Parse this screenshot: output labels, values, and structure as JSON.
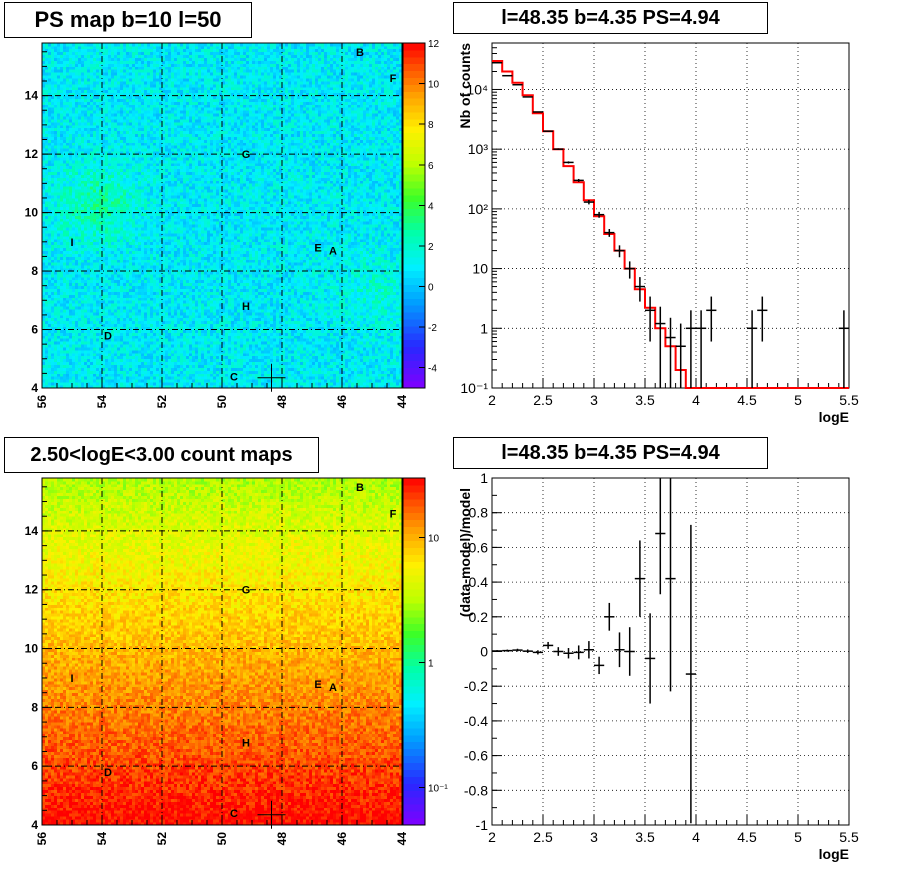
{
  "titles": {
    "ps_map": "PS map b=10 l=50",
    "spectrum": "l=48.35 b=4.35 PS=4.94",
    "count_map": "2.50<logE<3.00 count maps",
    "residual": "l=48.35 b=4.35 PS=4.94"
  },
  "colors": {
    "model_line": "#ff0000",
    "data_points": "#000000",
    "grid": "#000000"
  },
  "chart_data": [
    {
      "type": "heatmap",
      "id": "ps_map",
      "title": "PS map b=10 l=50",
      "x_range": [
        56,
        44
      ],
      "y_range": [
        4,
        15.8
      ],
      "x_ticks": [
        56,
        54,
        52,
        50,
        48,
        46,
        44
      ],
      "y_ticks": [
        4,
        6,
        8,
        10,
        12,
        14
      ],
      "colorbar_range": [
        -5,
        12
      ],
      "colorbar_ticks": [
        -4,
        -2,
        0,
        2,
        4,
        6,
        8,
        10,
        12
      ],
      "typical_value": 1,
      "sources": [
        {
          "label": "B",
          "l": 45.4,
          "b": 15.5
        },
        {
          "label": "F",
          "l": 44.3,
          "b": 14.6
        },
        {
          "label": "G",
          "l": 49.2,
          "b": 12.0
        },
        {
          "label": "I",
          "l": 55.0,
          "b": 9.0
        },
        {
          "label": "E",
          "l": 46.8,
          "b": 8.8
        },
        {
          "label": "A",
          "l": 46.3,
          "b": 8.7
        },
        {
          "label": "H",
          "l": 49.2,
          "b": 6.8
        },
        {
          "label": "D",
          "l": 53.8,
          "b": 5.8
        },
        {
          "label": "C",
          "l": 49.6,
          "b": 4.4
        }
      ],
      "marker": {
        "l": 48.35,
        "b": 4.35
      }
    },
    {
      "type": "line",
      "id": "spectrum",
      "title": "l=48.35 b=4.35 PS=4.94",
      "xlabel": "logE",
      "ylabel": "Nb of counts",
      "xlim": [
        2,
        5.5
      ],
      "ylim": [
        0.1,
        60000
      ],
      "y_scale": "log",
      "grid": true,
      "x_ticks": [
        2,
        2.5,
        3,
        3.5,
        4,
        4.5,
        5,
        5.5
      ],
      "y_ticks": [
        {
          "value": 0.1,
          "label": "10⁻¹"
        },
        {
          "value": 1,
          "label": "1"
        },
        {
          "value": 10,
          "label": "10"
        },
        {
          "value": 100,
          "label": "10²"
        },
        {
          "value": 1000,
          "label": "10³"
        },
        {
          "value": 10000,
          "label": "10⁴"
        }
      ],
      "bin_edges": [
        2.0,
        2.1,
        2.2,
        2.3,
        2.4,
        2.5,
        2.6,
        2.7,
        2.8,
        2.9,
        3.0,
        3.1,
        3.2,
        3.3,
        3.4,
        3.5,
        3.6,
        3.7,
        3.8,
        3.9,
        4.0,
        4.1,
        4.2,
        4.3,
        4.4,
        4.5,
        4.6,
        4.7,
        4.8,
        4.9,
        5.0,
        5.1,
        5.2,
        5.3,
        5.4,
        5.5
      ],
      "series": [
        {
          "kind": "model_histogram",
          "values": [
            30000,
            20000,
            13000,
            8000,
            4000,
            2000,
            1000,
            520,
            280,
            140,
            75,
            38,
            20,
            10,
            4.5,
            2.2,
            1.0,
            0.5,
            0.2,
            0.1,
            0.1,
            0.1,
            0.1,
            0.1,
            0.1,
            0.1,
            0.1,
            0.1,
            0.1,
            0.1,
            0.1,
            0.1,
            0.1,
            0.1,
            0.1
          ]
        },
        {
          "kind": "data_points",
          "x": [
            2.05,
            2.15,
            2.25,
            2.35,
            2.45,
            2.55,
            2.65,
            2.75,
            2.85,
            2.95,
            3.05,
            3.15,
            3.25,
            3.35,
            3.45,
            3.55,
            3.65,
            3.75,
            3.85,
            3.95,
            4.05,
            4.15,
            4.55,
            4.65,
            5.45
          ],
          "y": [
            28000,
            17000,
            12000,
            7500,
            4200,
            2000,
            1000,
            600,
            300,
            130,
            80,
            40,
            20,
            10,
            5,
            2,
            1.2,
            0.7,
            0.5,
            1,
            1,
            2,
            1,
            2,
            1
          ],
          "err": [
            170,
            130,
            110,
            90,
            65,
            45,
            32,
            25,
            17,
            11,
            9,
            6,
            4.5,
            3.2,
            2.2,
            1.4,
            1.1,
            0.8,
            0.7,
            1,
            1,
            1.4,
            1,
            1.4,
            1
          ]
        }
      ]
    },
    {
      "type": "heatmap",
      "id": "count_map",
      "title": "2.50<logE<3.00 count maps",
      "x_range": [
        56,
        44
      ],
      "y_range": [
        4,
        15.8
      ],
      "x_ticks": [
        56,
        54,
        52,
        50,
        48,
        46,
        44
      ],
      "y_ticks": [
        4,
        6,
        8,
        10,
        12,
        14
      ],
      "colorbar_scale": "log",
      "colorbar_range": [
        0.05,
        30
      ],
      "colorbar_ticks": [
        {
          "value": 0.1,
          "label": "10⁻¹"
        },
        {
          "value": 1,
          "label": "1"
        },
        {
          "value": 10,
          "label": "10"
        }
      ],
      "value_bottom": 30,
      "value_top": 3,
      "sources": [
        {
          "label": "B",
          "l": 45.4,
          "b": 15.5
        },
        {
          "label": "F",
          "l": 44.3,
          "b": 14.6
        },
        {
          "label": "G",
          "l": 49.2,
          "b": 12.0
        },
        {
          "label": "I",
          "l": 55.0,
          "b": 9.0
        },
        {
          "label": "E",
          "l": 46.8,
          "b": 8.8
        },
        {
          "label": "A",
          "l": 46.3,
          "b": 8.7
        },
        {
          "label": "H",
          "l": 49.2,
          "b": 6.8
        },
        {
          "label": "D",
          "l": 53.8,
          "b": 5.8
        },
        {
          "label": "C",
          "l": 49.6,
          "b": 4.4
        }
      ],
      "marker": {
        "l": 48.35,
        "b": 4.35
      }
    },
    {
      "type": "scatter",
      "id": "residual",
      "title": "l=48.35 b=4.35 PS=4.94",
      "xlabel": "logE",
      "ylabel": "(data-model)/model",
      "xlim": [
        2,
        5.5
      ],
      "ylim": [
        -1,
        1
      ],
      "grid": true,
      "x_ticks": [
        2,
        2.5,
        3,
        3.5,
        4,
        4.5,
        5,
        5.5
      ],
      "y_ticks": [
        -1,
        -0.8,
        -0.6,
        -0.4,
        -0.2,
        0,
        0.2,
        0.4,
        0.6,
        0.8,
        1
      ],
      "points": {
        "x": [
          2.05,
          2.15,
          2.25,
          2.35,
          2.45,
          2.55,
          2.65,
          2.75,
          2.85,
          2.95,
          3.05,
          3.15,
          3.25,
          3.35,
          3.45,
          3.55,
          3.65,
          3.75,
          3.95
        ],
        "y": [
          0.003,
          0.005,
          0.008,
          0.002,
          -0.005,
          0.035,
          0.0,
          -0.01,
          -0.005,
          0.01,
          -0.08,
          0.2,
          0.01,
          0.0,
          0.42,
          -0.04,
          0.68,
          0.42,
          -0.13
        ],
        "err": [
          0.005,
          0.006,
          0.008,
          0.01,
          0.012,
          0.02,
          0.025,
          0.03,
          0.04,
          0.05,
          0.05,
          0.08,
          0.1,
          0.14,
          0.22,
          0.26,
          0.35,
          0.65,
          0.86
        ]
      }
    }
  ]
}
